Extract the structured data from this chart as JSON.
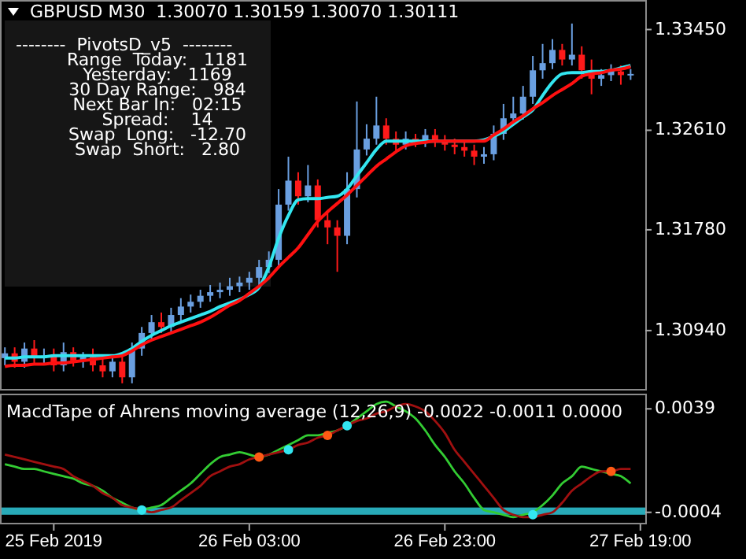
{
  "chart_data": [
    {
      "type": "candlestick",
      "title": "GBPUSD M30  1.30070 1.30159 1.30070 1.30111",
      "annotations": [
        "--------  PivotsD_v5  --------",
        "Range  Today:   1181",
        "Yesterday:   1169",
        "30 Day Range:   984",
        "Next Bar In:   02:15",
        "Spread:    14",
        "Swap  Long:   -12.70",
        "Swap  Short:   2.80"
      ],
      "categories": [
        null,
        null,
        null,
        null,
        null,
        null,
        null,
        null,
        null,
        null,
        null,
        null,
        null,
        null,
        null,
        null,
        null,
        null,
        null,
        null,
        null,
        null,
        null,
        null,
        null,
        null,
        null,
        null,
        null,
        null,
        null,
        null,
        null,
        null,
        null,
        null,
        null,
        null,
        null,
        null,
        null,
        null,
        null,
        null,
        null,
        null,
        null,
        null,
        null,
        null,
        null,
        null,
        null,
        null,
        null,
        null,
        null,
        null,
        null,
        null,
        null,
        null,
        null,
        null,
        null,
        null
      ],
      "ohlc": [
        [
          1.3071,
          1.308,
          1.3065,
          1.3075
        ],
        [
          1.3075,
          1.308,
          1.3063,
          1.3068
        ],
        [
          1.3068,
          1.3084,
          1.3063,
          1.3079
        ],
        [
          1.3079,
          1.3086,
          1.3065,
          1.3071
        ],
        [
          1.3071,
          1.3079,
          1.3065,
          1.3073
        ],
        [
          1.3073,
          1.3079,
          1.306,
          1.3065
        ],
        [
          1.3065,
          1.3084,
          1.306,
          1.3076
        ],
        [
          1.3076,
          1.308,
          1.3064,
          1.3069
        ],
        [
          1.3069,
          1.3076,
          1.3063,
          1.3072
        ],
        [
          1.3072,
          1.3079,
          1.306,
          1.3065
        ],
        [
          1.3065,
          1.3071,
          1.3055,
          1.306
        ],
        [
          1.306,
          1.3073,
          1.3055,
          1.3068
        ],
        [
          1.3068,
          1.3073,
          1.305,
          1.3055
        ],
        [
          1.3055,
          1.3084,
          1.305,
          1.3079
        ],
        [
          1.3079,
          1.3097,
          1.3073,
          1.3092
        ],
        [
          1.3092,
          1.3107,
          1.3086,
          1.3101
        ],
        [
          1.3101,
          1.3109,
          1.3092,
          1.3097
        ],
        [
          1.3097,
          1.3113,
          1.3092,
          1.3107
        ],
        [
          1.3107,
          1.3121,
          1.3102,
          1.3114
        ],
        [
          1.3114,
          1.3124,
          1.3109,
          1.3118
        ],
        [
          1.3118,
          1.3128,
          1.3113,
          1.3123
        ],
        [
          1.3123,
          1.3132,
          1.3118,
          1.3126
        ],
        [
          1.3126,
          1.3134,
          1.3121,
          1.3128
        ],
        [
          1.3128,
          1.3138,
          1.3123,
          1.3131
        ],
        [
          1.3131,
          1.3139,
          1.3126,
          1.3134
        ],
        [
          1.3134,
          1.3143,
          1.3128,
          1.3138
        ],
        [
          1.3138,
          1.3153,
          1.3132,
          1.3147
        ],
        [
          1.3147,
          1.316,
          1.3142,
          1.3153
        ],
        [
          1.3153,
          1.3212,
          1.3148,
          1.3199
        ],
        [
          1.3199,
          1.3239,
          1.3194,
          1.3219
        ],
        [
          1.3219,
          1.3226,
          1.3199,
          1.3206
        ],
        [
          1.3206,
          1.3232,
          1.3201,
          1.3215
        ],
        [
          1.3215,
          1.322,
          1.318,
          1.3186
        ],
        [
          1.3186,
          1.3194,
          1.3166,
          1.318
        ],
        [
          1.318,
          1.3186,
          1.3143,
          1.3173
        ],
        [
          1.3173,
          1.3226,
          1.3166,
          1.3212
        ],
        [
          1.3212,
          1.3285,
          1.3205,
          1.3245
        ],
        [
          1.3245,
          1.3266,
          1.324,
          1.3254
        ],
        [
          1.3254,
          1.3289,
          1.3249,
          1.3265
        ],
        [
          1.3265,
          1.3271,
          1.3249,
          1.3254
        ],
        [
          1.3254,
          1.326,
          1.3244,
          1.3249
        ],
        [
          1.3249,
          1.326,
          1.3245,
          1.3254
        ],
        [
          1.3254,
          1.3258,
          1.3247,
          1.3252
        ],
        [
          1.3252,
          1.3262,
          1.3247,
          1.3257
        ],
        [
          1.3257,
          1.3262,
          1.3247,
          1.3252
        ],
        [
          1.3252,
          1.3257,
          1.3244,
          1.3249
        ],
        [
          1.3249,
          1.3254,
          1.3241,
          1.3247
        ],
        [
          1.3247,
          1.3252,
          1.3239,
          1.3244
        ],
        [
          1.3244,
          1.3249,
          1.3232,
          1.3239
        ],
        [
          1.3239,
          1.3247,
          1.3233,
          1.3241
        ],
        [
          1.3241,
          1.3265,
          1.3236,
          1.3258
        ],
        [
          1.3258,
          1.3283,
          1.3253,
          1.3271
        ],
        [
          1.3271,
          1.3289,
          1.3266,
          1.3275
        ],
        [
          1.3275,
          1.3298,
          1.327,
          1.3289
        ],
        [
          1.3289,
          1.3323,
          1.3283,
          1.3311
        ],
        [
          1.3311,
          1.3333,
          1.3304,
          1.3317
        ],
        [
          1.3317,
          1.3337,
          1.3312,
          1.3328
        ],
        [
          1.3328,
          1.3333,
          1.3315,
          1.332
        ],
        [
          1.332,
          1.335,
          1.3315,
          1.3324
        ],
        [
          1.3324,
          1.3331,
          1.3304,
          1.3311
        ],
        [
          1.3311,
          1.332,
          1.3291,
          1.3304
        ],
        [
          1.3304,
          1.3312,
          1.3298,
          1.3307
        ],
        [
          1.3307,
          1.3316,
          1.3302,
          1.331
        ],
        [
          1.331,
          1.3315,
          1.3299,
          1.3307
        ],
        [
          1.3307,
          1.3312,
          1.3303,
          1.3308
        ],
        null
      ],
      "series": [
        {
          "type": "line",
          "color": "#33e6f0",
          "values": [
            1.3071,
            1.3071,
            1.3072,
            1.3072,
            1.3072,
            1.3073,
            1.3073,
            1.3073,
            1.3073,
            1.3073,
            1.3073,
            1.3073,
            1.3075,
            1.3079,
            1.3085,
            1.309,
            1.3094,
            1.3098,
            1.3101,
            1.3104,
            1.3107,
            1.311,
            1.3114,
            1.3117,
            1.312,
            1.3124,
            1.313,
            1.3147,
            1.3171,
            1.319,
            1.3203,
            1.3204,
            1.3204,
            1.3205,
            1.3206,
            1.3212,
            1.3223,
            1.3234,
            1.3245,
            1.3252,
            1.3252,
            1.3252,
            1.3252,
            1.3252,
            1.3252,
            1.3252,
            1.3252,
            1.3252,
            1.3252,
            1.3253,
            1.3256,
            1.326,
            1.3266,
            1.3272,
            1.3278,
            1.329,
            1.3301,
            1.3308,
            1.3309,
            1.3309,
            1.331,
            1.331,
            1.3311,
            1.3313,
            1.3315,
            null
          ]
        },
        {
          "type": "line",
          "color": "#ff1010",
          "values": [
            1.3064,
            1.3065,
            1.3065,
            1.3066,
            1.3066,
            1.3067,
            1.3067,
            1.3068,
            1.3069,
            1.307,
            1.3071,
            1.3072,
            1.3073,
            1.3077,
            1.3082,
            1.3086,
            1.3089,
            1.3092,
            1.3095,
            1.3098,
            1.3101,
            1.3105,
            1.311,
            1.3115,
            1.3119,
            1.3125,
            1.3131,
            1.3138,
            1.3147,
            1.3155,
            1.3163,
            1.3174,
            1.3185,
            1.3193,
            1.32,
            1.3207,
            1.3215,
            1.3223,
            1.3231,
            1.3237,
            1.3243,
            1.3248,
            1.325,
            1.3251,
            1.3252,
            1.3252,
            1.3252,
            1.3252,
            1.3252,
            1.3252,
            1.3257,
            1.3262,
            1.3268,
            1.3273,
            1.3279,
            1.3284,
            1.329,
            1.3295,
            1.33,
            1.3306,
            1.3308,
            1.3309,
            1.3311,
            1.3312,
            1.3314,
            null
          ]
        }
      ],
      "ylim": [
        1.3044,
        1.3367
      ],
      "yticks": [
        {
          "value": 1.3345,
          "label": "1.33450"
        },
        {
          "value": 1.3261,
          "label": "1.32610"
        },
        {
          "value": 1.3178,
          "label": "1.31780"
        },
        {
          "value": 1.3094,
          "label": "1.30940"
        }
      ],
      "tick_labels": "y",
      "grid": false
    },
    {
      "type": "line",
      "title": "MacdTape of Ahrens moving average (12,26,9) -0.0022 -0.0011 0.0000",
      "categories": [
        null,
        null,
        null,
        null,
        null,
        "25 Feb 2019",
        null,
        null,
        null,
        null,
        null,
        null,
        null,
        null,
        null,
        null,
        null,
        null,
        null,
        null,
        null,
        null,
        null,
        null,
        null,
        "26 Feb 03:00",
        null,
        null,
        null,
        null,
        null,
        null,
        null,
        null,
        null,
        null,
        null,
        null,
        null,
        null,
        null,
        null,
        null,
        null,
        null,
        "26 Feb 23:00",
        null,
        null,
        null,
        null,
        null,
        null,
        null,
        null,
        null,
        null,
        null,
        null,
        null,
        null,
        null,
        null,
        null,
        null,
        null,
        "27 Feb 19:00"
      ],
      "series": [
        {
          "type": "line",
          "color": "#33cc33",
          "values": [
            0.0016,
            0.0015,
            0.0014,
            0.0014,
            0.0013,
            0.0012,
            0.0011,
            0.001,
            0.0008,
            0.0007,
            0.0005,
            0.0002,
            0.0,
            -0.0002,
            -0.0003,
            -0.0002,
            -0.0001,
            0.0002,
            0.0005,
            0.0008,
            0.0012,
            0.0016,
            0.0019,
            0.002,
            0.0021,
            0.002,
            0.0019,
            0.002,
            0.0022,
            0.0024,
            0.0026,
            0.0028,
            0.0028,
            0.0029,
            0.003,
            0.0032,
            0.0035,
            0.0038,
            0.0041,
            0.0042,
            0.004,
            0.0038,
            0.0035,
            0.003,
            0.0024,
            0.0019,
            0.0013,
            0.0008,
            0.0002,
            -0.0003,
            -0.0004,
            -0.0005,
            -0.0006,
            -0.0005,
            -0.0004,
            -0.0001,
            0.0003,
            0.0008,
            0.0011,
            0.0015,
            0.0014,
            0.0013,
            0.0012,
            0.0011,
            0.0008,
            null
          ]
        },
        {
          "type": "line",
          "color": "#a01010",
          "values": [
            0.002,
            0.0019,
            0.0018,
            0.0017,
            0.0016,
            0.0015,
            0.0014,
            0.0011,
            0.0009,
            0.0007,
            0.0004,
            0.0002,
            -0.0001,
            -0.0002,
            -0.0003,
            -0.0004,
            -0.0003,
            -0.0002,
            0.0001,
            0.0004,
            0.0007,
            0.0011,
            0.0013,
            0.0015,
            0.0016,
            0.0018,
            0.0019,
            0.002,
            0.0021,
            0.0022,
            0.0024,
            0.0025,
            0.0027,
            0.0028,
            0.003,
            0.0032,
            0.0034,
            0.0035,
            0.0037,
            0.0038,
            0.004,
            0.0041,
            0.004,
            0.0038,
            0.0034,
            0.0029,
            0.0022,
            0.0017,
            0.0012,
            0.0007,
            0.0002,
            -0.0003,
            -0.0005,
            -0.0006,
            -0.0006,
            -0.0005,
            -0.0004,
            0.0,
            0.0005,
            0.0008,
            0.0011,
            0.0013,
            0.0013,
            0.0014,
            0.0014,
            null
          ]
        },
        {
          "type": "scatter",
          "marker": "circle",
          "color": "#ff5a14",
          "values": [
            null,
            null,
            null,
            null,
            null,
            null,
            null,
            null,
            null,
            null,
            null,
            null,
            null,
            null,
            null,
            null,
            null,
            null,
            null,
            null,
            null,
            null,
            null,
            null,
            null,
            null,
            0.0019,
            null,
            null,
            null,
            null,
            null,
            null,
            0.0028,
            null,
            null,
            null,
            null,
            null,
            null,
            null,
            null,
            null,
            null,
            null,
            null,
            null,
            null,
            null,
            null,
            null,
            null,
            null,
            null,
            null,
            null,
            null,
            null,
            null,
            null,
            null,
            null,
            0.0013,
            null,
            null,
            null
          ]
        },
        {
          "type": "scatter",
          "marker": "circle",
          "color": "#33e6f0",
          "values": [
            null,
            null,
            null,
            null,
            null,
            null,
            null,
            null,
            null,
            null,
            null,
            null,
            null,
            null,
            -0.0003,
            null,
            null,
            null,
            null,
            null,
            null,
            null,
            null,
            null,
            null,
            null,
            null,
            null,
            null,
            0.0022,
            null,
            null,
            null,
            null,
            null,
            0.0032,
            null,
            null,
            null,
            null,
            null,
            null,
            null,
            null,
            null,
            null,
            null,
            null,
            null,
            null,
            null,
            null,
            null,
            null,
            -0.0005,
            null,
            null,
            null,
            null,
            null,
            null,
            null,
            null,
            null,
            null,
            null
          ]
        }
      ],
      "bands": [
        {
          "axis": "y",
          "from": -0.0005,
          "to": -0.0002,
          "color": "#2fc8d8"
        }
      ],
      "ylim": [
        -0.0009,
        0.0044
      ],
      "yticks": [
        {
          "value": 0.0039,
          "label": "0.0039"
        },
        {
          "value": -0.0004,
          "label": "-0.0004"
        }
      ],
      "grid": false
    }
  ]
}
